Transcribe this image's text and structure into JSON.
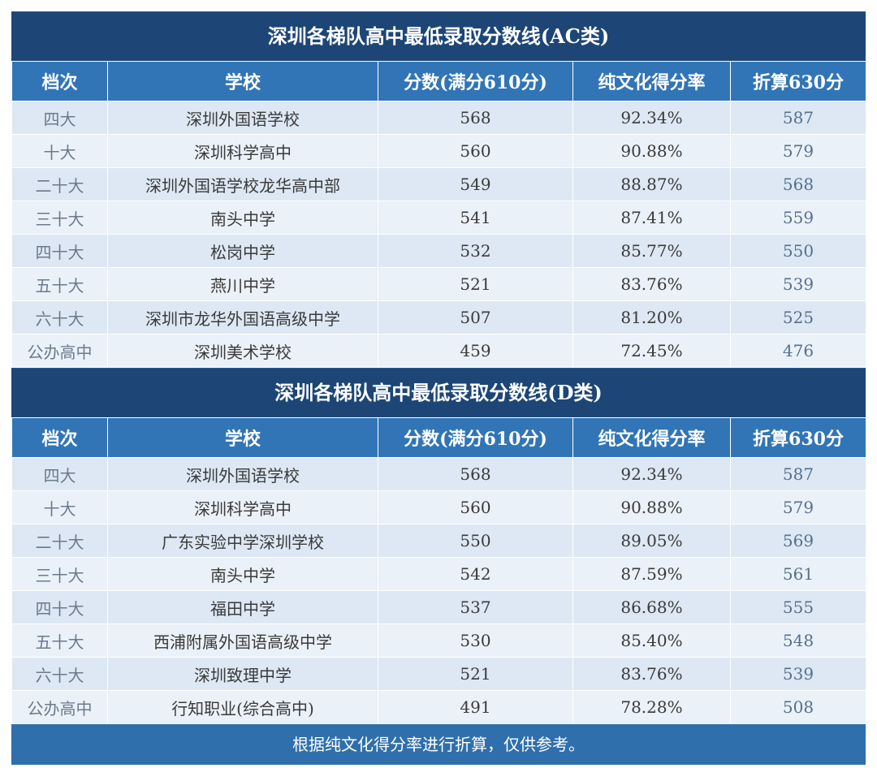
{
  "tables": [
    {
      "title": "深圳各梯队高中最低录取分数线(AC类)",
      "headers": [
        "档次",
        "学校",
        "分数(满分610分)",
        "纯文化得分率",
        "折算630分"
      ],
      "rows": [
        [
          "四大",
          "深圳外国语学校",
          "568",
          "92.34%",
          "587"
        ],
        [
          "十大",
          "深圳科学高中",
          "560",
          "90.88%",
          "579"
        ],
        [
          "二十大",
          "深圳外国语学校龙华高中部",
          "549",
          "88.87%",
          "568"
        ],
        [
          "三十大",
          "南头中学",
          "541",
          "87.41%",
          "559"
        ],
        [
          "四十大",
          "松岗中学",
          "532",
          "85.77%",
          "550"
        ],
        [
          "五十大",
          "燕川中学",
          "521",
          "83.76%",
          "539"
        ],
        [
          "六十大",
          "深圳市龙华外国语高级中学",
          "507",
          "81.20%",
          "525"
        ],
        [
          "公办高中",
          "深圳美术学校",
          "459",
          "72.45%",
          "476"
        ]
      ]
    },
    {
      "title": "深圳各梯队高中最低录取分数线(D类)",
      "headers": [
        "档次",
        "学校",
        "分数(满分610分)",
        "纯文化得分率",
        "折算630分"
      ],
      "rows": [
        [
          "四大",
          "深圳外国语学校",
          "568",
          "92.34%",
          "587"
        ],
        [
          "十大",
          "深圳科学高中",
          "560",
          "90.88%",
          "579"
        ],
        [
          "二十大",
          "广东实验中学深圳学校",
          "550",
          "89.05%",
          "569"
        ],
        [
          "三十大",
          "南头中学",
          "542",
          "87.59%",
          "561"
        ],
        [
          "四十大",
          "福田中学",
          "537",
          "86.68%",
          "555"
        ],
        [
          "五十大",
          "西浦附属外国语高级中学",
          "530",
          "85.40%",
          "548"
        ],
        [
          "六十大",
          "深圳致理中学",
          "521",
          "83.76%",
          "539"
        ],
        [
          "公办高中",
          "行知职业(综合高中)",
          "491",
          "78.28%",
          "508"
        ]
      ]
    }
  ],
  "footer": "根据纯文化得分率进行折算，仅供参考。",
  "colors": {
    "title_bg": "#1d4677",
    "header_bg": "#3175b6",
    "row_bg": "#dde8f4",
    "row_alt_bg": "#ebf1f8",
    "footer_bg": "#2f6fac"
  }
}
